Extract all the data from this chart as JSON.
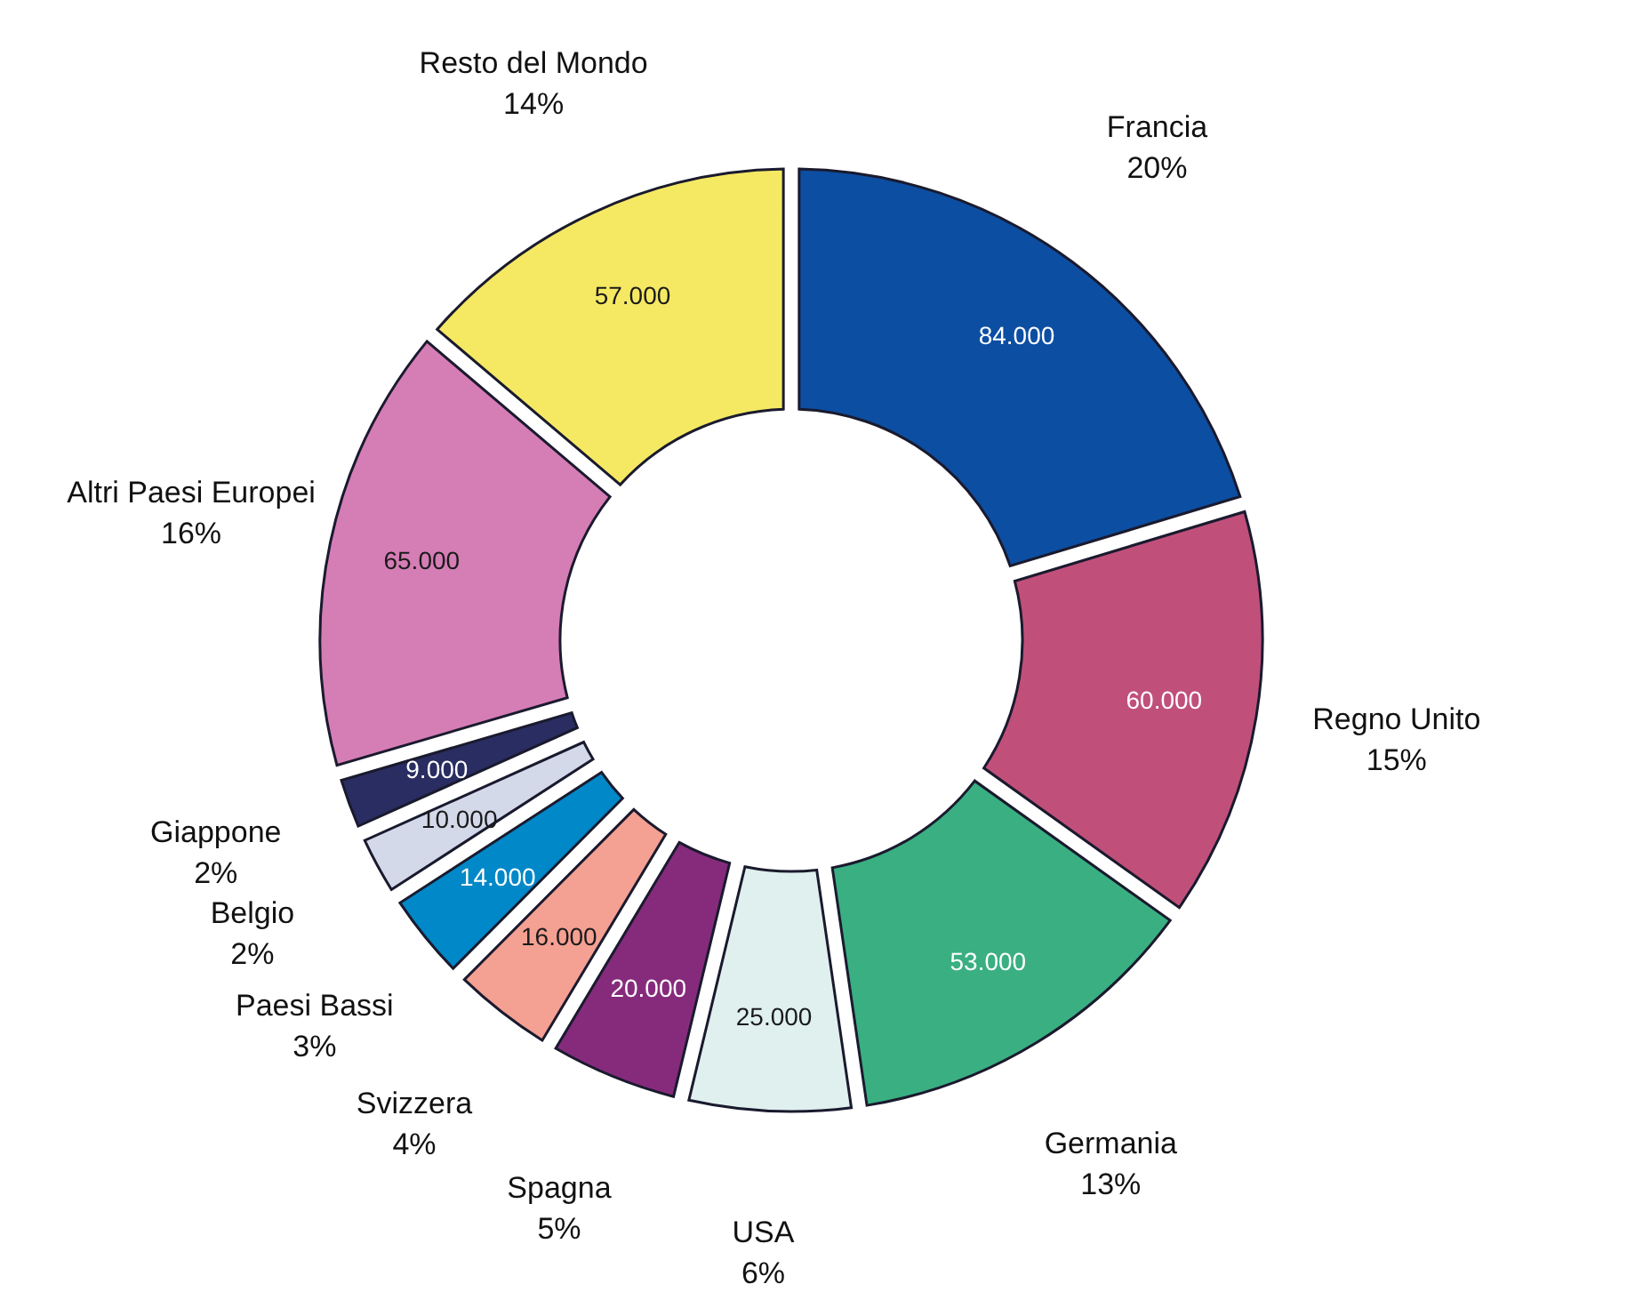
{
  "chart_data": {
    "type": "donut",
    "categories": [
      "Francia",
      "Regno Unito",
      "Germania",
      "USA",
      "Spagna",
      "Svizzera",
      "Paesi Bassi",
      "Belgio",
      "Giappone",
      "Altri Paesi Europei",
      "Resto del Mondo"
    ],
    "values": [
      84000,
      60000,
      53000,
      25000,
      20000,
      16000,
      14000,
      10000,
      9000,
      65000,
      57000
    ],
    "value_labels": [
      "84.000",
      "60.000",
      "53.000",
      "25.000",
      "20.000",
      "16.000",
      "14.000",
      "10.000",
      "9.000",
      "65.000",
      "57.000"
    ],
    "annotations": [
      "20%",
      "15%",
      "13%",
      "6%",
      "5%",
      "4%",
      "3%",
      "2%",
      "2%",
      "16%",
      "14%"
    ],
    "colors": [
      "#0c4ea2",
      "#c0507a",
      "#3aaf82",
      "#dff0ee",
      "#862b7c",
      "#f4a092",
      "#0088c8",
      "#d4d9ea",
      "#2a2d62",
      "#d57db5",
      "#f5e964"
    ]
  }
}
